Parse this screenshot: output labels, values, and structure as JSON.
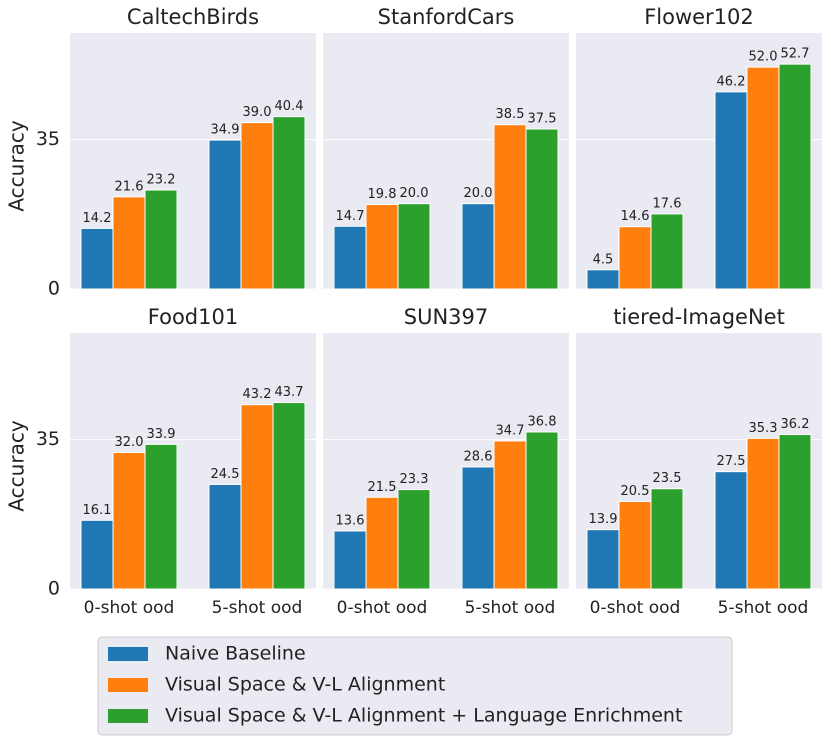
{
  "chart_data": [
    {
      "type": "bar",
      "title": "CaltechBirds",
      "ylabel": "Accuracy",
      "categories": [
        null,
        null
      ],
      "ylim": [
        0,
        60
      ],
      "yticks": [
        0,
        35
      ],
      "grid": true,
      "series": [
        {
          "name": "Naive Baseline",
          "color": "#1f77b4",
          "values": [
            14.2,
            34.9
          ],
          "value_labels": [
            "14.2",
            "34.9"
          ]
        },
        {
          "name": "Visual Space & V-L Alignment",
          "color": "#ff7f0e",
          "values": [
            21.6,
            39.0
          ],
          "value_labels": [
            "21.6",
            "39.0"
          ]
        },
        {
          "name": "Visual Space & V-L Alignment + Language Enrichment",
          "color": "#2ca02c",
          "values": [
            23.2,
            40.4
          ],
          "value_labels": [
            "23.2",
            "40.4"
          ]
        }
      ]
    },
    {
      "type": "bar",
      "title": "StanfordCars",
      "categories": [
        null,
        null
      ],
      "ylim": [
        0,
        60
      ],
      "yticks": [
        0,
        35
      ],
      "grid": true,
      "series": [
        {
          "color": "#1f77b4",
          "values": [
            14.7,
            20.0
          ],
          "value_labels": [
            "14.7",
            "20.0"
          ]
        },
        {
          "color": "#ff7f0e",
          "values": [
            19.8,
            38.5
          ],
          "value_labels": [
            "19.8",
            "38.5"
          ]
        },
        {
          "color": "#2ca02c",
          "values": [
            20.0,
            37.5
          ],
          "value_labels": [
            "20.0",
            "37.5"
          ]
        }
      ]
    },
    {
      "type": "bar",
      "title": "Flower102",
      "categories": [
        null,
        null
      ],
      "ylim": [
        0,
        60
      ],
      "yticks": [
        0,
        35
      ],
      "grid": true,
      "series": [
        {
          "color": "#1f77b4",
          "values": [
            4.5,
            46.2
          ],
          "value_labels": [
            "4.5",
            "46.2"
          ]
        },
        {
          "color": "#ff7f0e",
          "values": [
            14.6,
            52.0
          ],
          "value_labels": [
            "14.6",
            "52.0"
          ]
        },
        {
          "color": "#2ca02c",
          "values": [
            17.6,
            52.7
          ],
          "value_labels": [
            "17.6",
            "52.7"
          ]
        }
      ]
    },
    {
      "type": "bar",
      "title": "Food101",
      "ylabel": "Accuracy",
      "categories": [
        "0-shot ood",
        "5-shot ood"
      ],
      "ylim": [
        0,
        60
      ],
      "yticks": [
        0,
        35
      ],
      "grid": true,
      "series": [
        {
          "color": "#1f77b4",
          "values": [
            16.1,
            24.5
          ],
          "value_labels": [
            "16.1",
            "24.5"
          ]
        },
        {
          "color": "#ff7f0e",
          "values": [
            32.0,
            43.2
          ],
          "value_labels": [
            "32.0",
            "43.2"
          ]
        },
        {
          "color": "#2ca02c",
          "values": [
            33.9,
            43.7
          ],
          "value_labels": [
            "33.9",
            "43.7"
          ]
        }
      ]
    },
    {
      "type": "bar",
      "title": "SUN397",
      "categories": [
        "0-shot ood",
        "5-shot ood"
      ],
      "ylim": [
        0,
        60
      ],
      "yticks": [
        0,
        35
      ],
      "grid": true,
      "series": [
        {
          "color": "#1f77b4",
          "values": [
            13.6,
            28.6
          ],
          "value_labels": [
            "13.6",
            "28.6"
          ]
        },
        {
          "color": "#ff7f0e",
          "values": [
            21.5,
            34.7
          ],
          "value_labels": [
            "21.5",
            "34.7"
          ]
        },
        {
          "color": "#2ca02c",
          "values": [
            23.3,
            36.8
          ],
          "value_labels": [
            "23.3",
            "36.8"
          ]
        }
      ]
    },
    {
      "type": "bar",
      "title": "tiered-ImageNet",
      "categories": [
        "0-shot ood",
        "5-shot ood"
      ],
      "ylim": [
        0,
        60
      ],
      "yticks": [
        0,
        35
      ],
      "grid": true,
      "series": [
        {
          "color": "#1f77b4",
          "values": [
            13.9,
            27.5
          ],
          "value_labels": [
            "13.9",
            "27.5"
          ]
        },
        {
          "color": "#ff7f0e",
          "values": [
            20.5,
            35.3
          ],
          "value_labels": [
            "20.5",
            "35.3"
          ]
        },
        {
          "color": "#2ca02c",
          "values": [
            23.5,
            36.2
          ],
          "value_labels": [
            "23.5",
            "36.2"
          ]
        }
      ]
    }
  ]
}
